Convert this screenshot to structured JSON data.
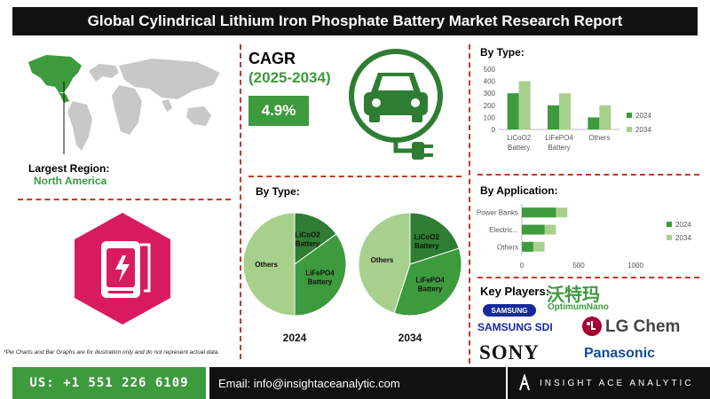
{
  "title": "Global Cylindrical Lithium Iron Phosphate Battery Market Research Report",
  "region": {
    "label": "Largest Region:",
    "value": "North America"
  },
  "cagr": {
    "label": "CAGR",
    "period": "(2025-2034)",
    "value": "4.9%"
  },
  "pie_section_title": "By Type:",
  "bar_type_title": "By Type:",
  "bar_app_title": "By Application:",
  "players": {
    "title": "Key Players:",
    "samsung": "SAMSUNG",
    "samsung_sdi": "SAMSUNG SDI",
    "wotema": "沃特玛",
    "optimum": "OptimumNano",
    "lg": "LG Chem",
    "sony": "SONY",
    "panasonic": "Panasonic"
  },
  "note": "*Pie Charts and Bar Graphs are for illustration only and do not represent actual data.",
  "footer": {
    "phone": "US: +1 551 226 6109",
    "email": "Email: info@insightaceanalytic.com",
    "brand": "INSIGHT ACE ANALYTIC"
  },
  "colors": {
    "green": "#3d9a3d",
    "light_green": "#a8d08d",
    "dark_green": "#2e7d32",
    "red": "#c0392b",
    "pink": "#d81b60"
  },
  "icons": [
    "world-map",
    "electric-car-icon",
    "power-bank-icon"
  ],
  "chart_data": [
    {
      "type": "bar",
      "categories": [
        "LiCoO2 Battery",
        "LiFePO4 Battery",
        "Others"
      ],
      "series": [
        {
          "name": "2024",
          "values": [
            300,
            200,
            100
          ]
        },
        {
          "name": "2034",
          "values": [
            400,
            300,
            200
          ]
        }
      ],
      "ylim": [
        0,
        500
      ],
      "yticks": [
        0,
        100,
        200,
        300,
        400,
        500
      ],
      "legend": "right",
      "grid": false
    },
    {
      "type": "bar",
      "orientation": "horizontal",
      "categories": [
        "Power Banks",
        "Electric...",
        "Others"
      ],
      "series": [
        {
          "name": "2024",
          "values": [
            300,
            200,
            100
          ]
        },
        {
          "name": "2034",
          "values": [
            400,
            300,
            200
          ]
        }
      ],
      "xlim": [
        0,
        1000
      ],
      "xticks": [
        0,
        500,
        1000
      ],
      "legend": "right",
      "grid": false
    },
    {
      "type": "pie",
      "year": "2024",
      "slices": [
        {
          "label": "LiCoO2 Battery",
          "value": 15
        },
        {
          "label": "LiFePO4 Battery",
          "value": 35
        },
        {
          "label": "Others",
          "value": 50
        }
      ]
    },
    {
      "type": "pie",
      "year": "2034",
      "slices": [
        {
          "label": "LiCoO2 Battery",
          "value": 20
        },
        {
          "label": "LiFePO4 Battery",
          "value": 35
        },
        {
          "label": "Others",
          "value": 45
        }
      ]
    }
  ]
}
